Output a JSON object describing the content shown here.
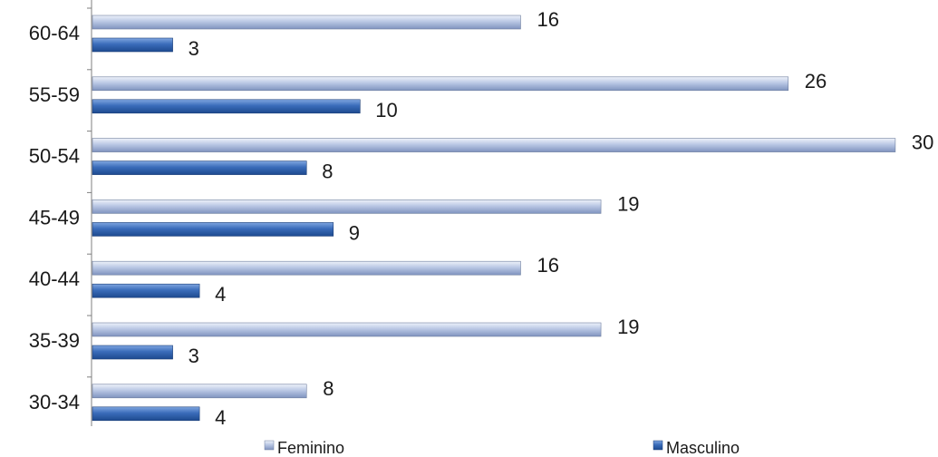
{
  "chart_data": {
    "type": "bar",
    "orientation": "horizontal",
    "categories": [
      "30-34",
      "35-39",
      "40-44",
      "45-49",
      "50-54",
      "55-59",
      "60-64"
    ],
    "series": [
      {
        "name": "Feminino",
        "values": [
          8,
          19,
          16,
          19,
          30,
          26,
          16
        ],
        "color": "#a9b8d9"
      },
      {
        "name": "Masculino",
        "values": [
          4,
          3,
          4,
          9,
          8,
          10,
          3
        ],
        "color": "#3a6cba"
      }
    ],
    "title": "",
    "xlabel": "",
    "ylabel": "",
    "xlim": [
      0,
      30
    ],
    "grid": false,
    "legend": "bottom",
    "data_labels": true
  }
}
